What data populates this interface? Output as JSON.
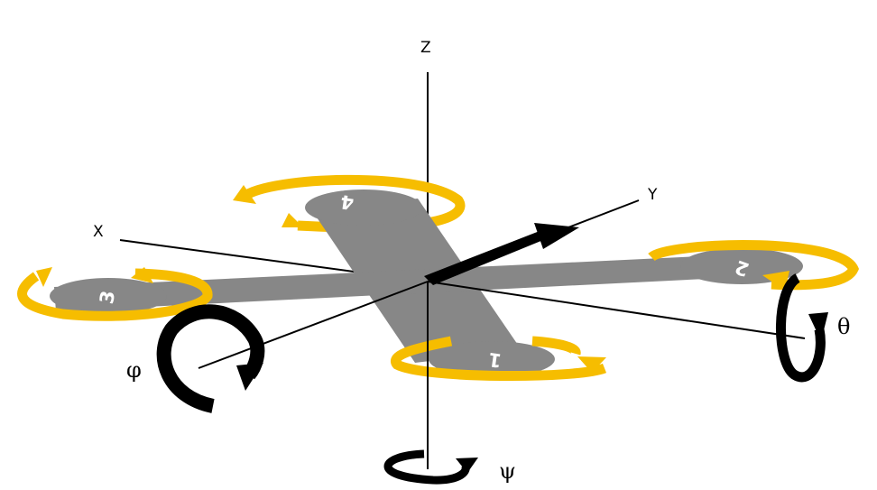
{
  "axes": {
    "z": "Z",
    "x": "X",
    "y": "Y"
  },
  "angles": {
    "roll": "φ",
    "pitch": "θ",
    "yaw": "ψ"
  },
  "motors": [
    "1",
    "2",
    "3",
    "4"
  ],
  "colors": {
    "arm": "#878787",
    "rotor": "#f6bd00",
    "axis": "#000000",
    "arrow": "#000000"
  }
}
